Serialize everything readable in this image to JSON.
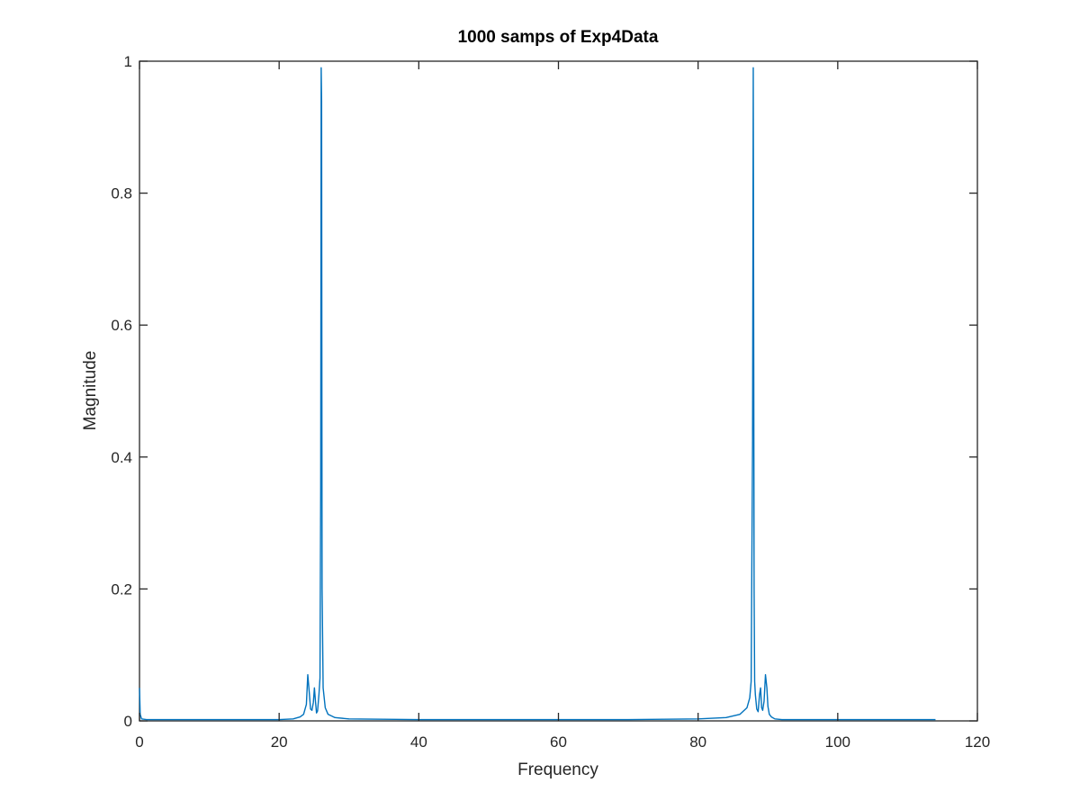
{
  "chart_data": {
    "type": "line",
    "title": "1000 samps of Exp4Data",
    "xlabel": "Frequency",
    "ylabel": "Magnitude",
    "xlim": [
      0,
      120
    ],
    "ylim": [
      0,
      1
    ],
    "xticks": [
      "0",
      "20",
      "40",
      "60",
      "80",
      "100",
      "120"
    ],
    "yticks": [
      "0",
      "0.2",
      "0.4",
      "0.6",
      "0.8",
      "1"
    ],
    "grid": false,
    "legend": "none",
    "series": [
      {
        "color": "#0072BD",
        "x": [
          0,
          0.1,
          0.3,
          1,
          5,
          10,
          15,
          20,
          22,
          23,
          23.5,
          23.9,
          24.1,
          24.3,
          24.5,
          24.7,
          24.9,
          25.05,
          25.2,
          25.35,
          25.5,
          25.7,
          25.85,
          25.95,
          26.02,
          26.08,
          26.15,
          26.3,
          26.6,
          27,
          28,
          30,
          40,
          50,
          60,
          70,
          80,
          84,
          86,
          87,
          87.4,
          87.6,
          87.8,
          87.9,
          87.97,
          88.02,
          88.1,
          88.2,
          88.4,
          88.6,
          88.8,
          88.95,
          89.1,
          89.25,
          89.45,
          89.65,
          89.85,
          90.0,
          90.2,
          90.5,
          91,
          92,
          95,
          100,
          105,
          110,
          114
        ],
        "y": [
          0.05,
          0.01,
          0.003,
          0.002,
          0.002,
          0.002,
          0.002,
          0.002,
          0.003,
          0.006,
          0.01,
          0.025,
          0.07,
          0.045,
          0.018,
          0.016,
          0.028,
          0.05,
          0.03,
          0.012,
          0.015,
          0.04,
          0.065,
          0.35,
          0.99,
          0.94,
          0.2,
          0.05,
          0.02,
          0.01,
          0.005,
          0.003,
          0.002,
          0.002,
          0.002,
          0.002,
          0.003,
          0.005,
          0.01,
          0.02,
          0.035,
          0.06,
          0.42,
          0.99,
          0.55,
          0.2,
          0.06,
          0.04,
          0.018,
          0.014,
          0.04,
          0.05,
          0.02,
          0.016,
          0.03,
          0.07,
          0.05,
          0.022,
          0.01,
          0.006,
          0.003,
          0.002,
          0.002,
          0.002,
          0.002,
          0.002,
          0.002
        ]
      }
    ]
  }
}
